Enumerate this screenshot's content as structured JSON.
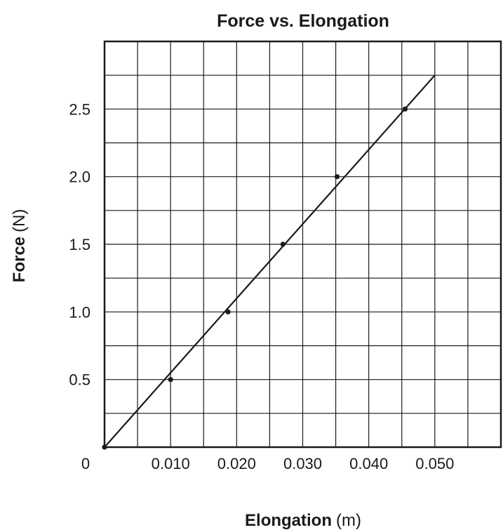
{
  "chart_data": {
    "type": "scatter",
    "title": "Force vs. Elongation",
    "xlabel": {
      "bold": "Elongation",
      "unit": "(m)"
    },
    "ylabel": {
      "bold": "Force",
      "unit": "(N)"
    },
    "origin_label": "0",
    "x_ticks": [
      "0.010",
      "0.020",
      "0.030",
      "0.040",
      "0.050"
    ],
    "y_ticks": [
      "0.5",
      "1.0",
      "1.5",
      "2.0",
      "2.5"
    ],
    "xlim": [
      0,
      0.06
    ],
    "ylim": [
      0,
      3.0
    ],
    "grid": true,
    "x_grid_step": 0.005,
    "y_grid_step": 0.25,
    "series": [
      {
        "points": [
          {
            "x": 0.0,
            "y": 0.0
          },
          {
            "x": 0.01,
            "y": 0.5
          },
          {
            "x": 0.0187,
            "y": 1.0
          },
          {
            "x": 0.027,
            "y": 1.5
          },
          {
            "x": 0.0352,
            "y": 2.0
          },
          {
            "x": 0.0455,
            "y": 2.5
          }
        ]
      }
    ],
    "best_fit_line": {
      "x1": 0.0,
      "y1": 0.0,
      "x2": 0.05,
      "y2": 2.75
    },
    "colors": {
      "ink": "#1a1a1a",
      "background": "#ffffff"
    }
  }
}
